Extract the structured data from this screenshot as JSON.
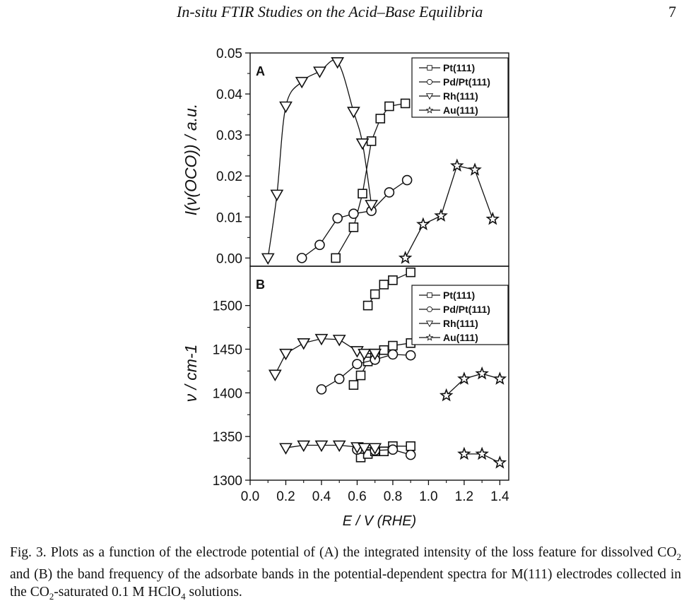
{
  "header": {
    "running_title": "In-situ FTIR Studies on the Acid–Base Equilibria",
    "page_number": "7"
  },
  "figure": {
    "caption": {
      "label": "Fig. 3.",
      "part1": "Plots as a function of the electrode potential of (A) the integrated intensity of the loss feature for dissolved CO",
      "part2": " and (B) the band frequency of the adsorbate bands in the potential-dependent spectra for M(111) electrodes collected in the CO",
      "part3": "-saturated 0.1 M HClO",
      "part4": " solutions.",
      "sub_2a": "2",
      "sub_2b": "2",
      "sub_4": "4"
    }
  },
  "chart_data": [
    {
      "type": "line",
      "panel": "A",
      "xlabel": "E / V (RHE)",
      "ylabel": "I(ν(OCO)) / a.u.",
      "xlim": [
        0.0,
        1.45
      ],
      "ylim": [
        -0.002,
        0.05
      ],
      "yticks": [
        "0.00",
        "0.01",
        "0.02",
        "0.03",
        "0.04",
        "0.05"
      ],
      "legend_position": "top-right",
      "series": [
        {
          "name": "Pt(111)",
          "marker": "square",
          "x": [
            0.48,
            0.58,
            0.63,
            0.68,
            0.73,
            0.78,
            0.87
          ],
          "y": [
            0.0,
            0.0075,
            0.0157,
            0.0285,
            0.034,
            0.037,
            0.0377
          ]
        },
        {
          "name": "Pd/Pt(111)",
          "marker": "circle",
          "x": [
            0.29,
            0.39,
            0.49,
            0.58,
            0.68,
            0.78,
            0.88
          ],
          "y": [
            0.0,
            0.0032,
            0.0097,
            0.0108,
            0.0115,
            0.016,
            0.019
          ]
        },
        {
          "name": "Rh(111)",
          "marker": "triangle-down",
          "x": [
            0.1,
            0.15,
            0.2,
            0.29,
            0.39,
            0.49,
            0.58,
            0.63,
            0.68
          ],
          "y": [
            0.0,
            0.0155,
            0.037,
            0.043,
            0.0455,
            0.0478,
            0.0357,
            0.028,
            0.013
          ]
        },
        {
          "name": "Au(111)",
          "marker": "star",
          "x": [
            0.87,
            0.97,
            1.07,
            1.16,
            1.26,
            1.36
          ],
          "y": [
            0.0,
            0.0082,
            0.0103,
            0.0225,
            0.0215,
            0.0095
          ]
        }
      ]
    },
    {
      "type": "line",
      "panel": "B",
      "xlabel": "E / V (RHE)",
      "ylabel": "ν / cm-1",
      "xlim": [
        0.0,
        1.45
      ],
      "ylim": [
        1300,
        1545
      ],
      "xticks": [
        "0.0",
        "0.2",
        "0.4",
        "0.6",
        "0.8",
        "1.0",
        "1.2",
        "1.4"
      ],
      "yticks": [
        "1300",
        "1350",
        "1400",
        "1450",
        "1500"
      ],
      "legend_position": "top-right",
      "series": [
        {
          "name": "Pt(111)",
          "marker": "square",
          "x": [
            0.66,
            0.7,
            0.75,
            0.8,
            0.9
          ],
          "y": [
            1500,
            1513,
            1524,
            1529,
            1538
          ]
        },
        {
          "name": "Pt(111)",
          "marker": "square",
          "x": [
            0.58,
            0.62,
            0.66,
            0.7,
            0.75,
            0.8,
            0.9
          ],
          "y": [
            1409,
            1420,
            1436,
            1445,
            1449,
            1454,
            1457
          ]
        },
        {
          "name": "Pt(111)",
          "marker": "square",
          "x": [
            0.62,
            0.66,
            0.7,
            0.75,
            0.8,
            0.9
          ],
          "y": [
            1326,
            1330,
            1333,
            1333,
            1339,
            1339
          ]
        },
        {
          "name": "Pd/Pt(111)",
          "marker": "circle",
          "x": [
            0.4,
            0.5,
            0.6,
            0.7,
            0.8,
            0.9
          ],
          "y": [
            1404,
            1416,
            1433,
            1438,
            1444,
            1443
          ]
        },
        {
          "name": "Pd/Pt(111)",
          "marker": "circle",
          "x": [
            0.6,
            0.7,
            0.8,
            0.9
          ],
          "y": [
            1335,
            1334,
            1335,
            1329
          ]
        },
        {
          "name": "Rh(111)",
          "marker": "triangle-down",
          "x": [
            0.14,
            0.2,
            0.3,
            0.4,
            0.5,
            0.6,
            0.64,
            0.7
          ],
          "y": [
            1421,
            1445,
            1457,
            1462,
            1461,
            1448,
            1445,
            1445
          ]
        },
        {
          "name": "Rh(111)",
          "marker": "triangle-down",
          "x": [
            0.2,
            0.3,
            0.4,
            0.5,
            0.6,
            0.64,
            0.7
          ],
          "y": [
            1337,
            1340,
            1340,
            1340,
            1338,
            1337,
            1337
          ]
        },
        {
          "name": "Au(111)",
          "marker": "star",
          "x": [
            1.1,
            1.2,
            1.3,
            1.4
          ],
          "y": [
            1397,
            1416,
            1422,
            1416
          ]
        },
        {
          "name": "Au(111)",
          "marker": "star",
          "x": [
            1.2,
            1.3,
            1.4
          ],
          "y": [
            1330,
            1330,
            1320
          ]
        }
      ]
    }
  ]
}
